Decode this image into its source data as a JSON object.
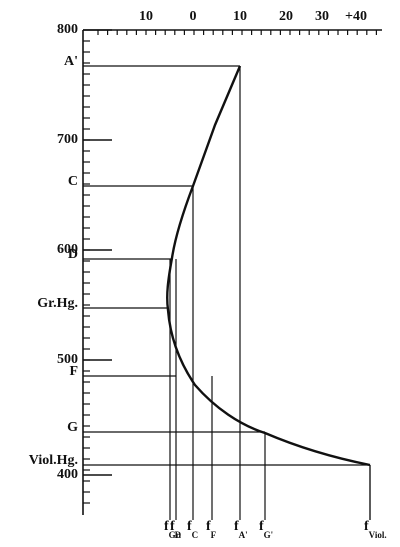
{
  "left_axis": {
    "labels": [
      "800",
      "700",
      "600",
      "500",
      "400"
    ]
  },
  "top_axis": {
    "labels": [
      "10",
      "0",
      "10",
      "20",
      "30",
      "+40"
    ]
  },
  "lines": [
    {
      "label": "A'"
    },
    {
      "label": "C"
    },
    {
      "label": "D"
    },
    {
      "label": "Gr.Hg."
    },
    {
      "label": "F"
    },
    {
      "label": "G"
    },
    {
      "label": "Viol.Hg."
    }
  ],
  "bottom_labels": [
    {
      "main": "f",
      "sub": "Gr."
    },
    {
      "main": "f",
      "sub": "D"
    },
    {
      "main": "f",
      "sub": "C"
    },
    {
      "main": "f",
      "sub": "F"
    },
    {
      "main": "f",
      "sub": "A'"
    },
    {
      "main": "f",
      "sub": "G'"
    },
    {
      "main": "f",
      "sub": "Viol."
    }
  ]
}
